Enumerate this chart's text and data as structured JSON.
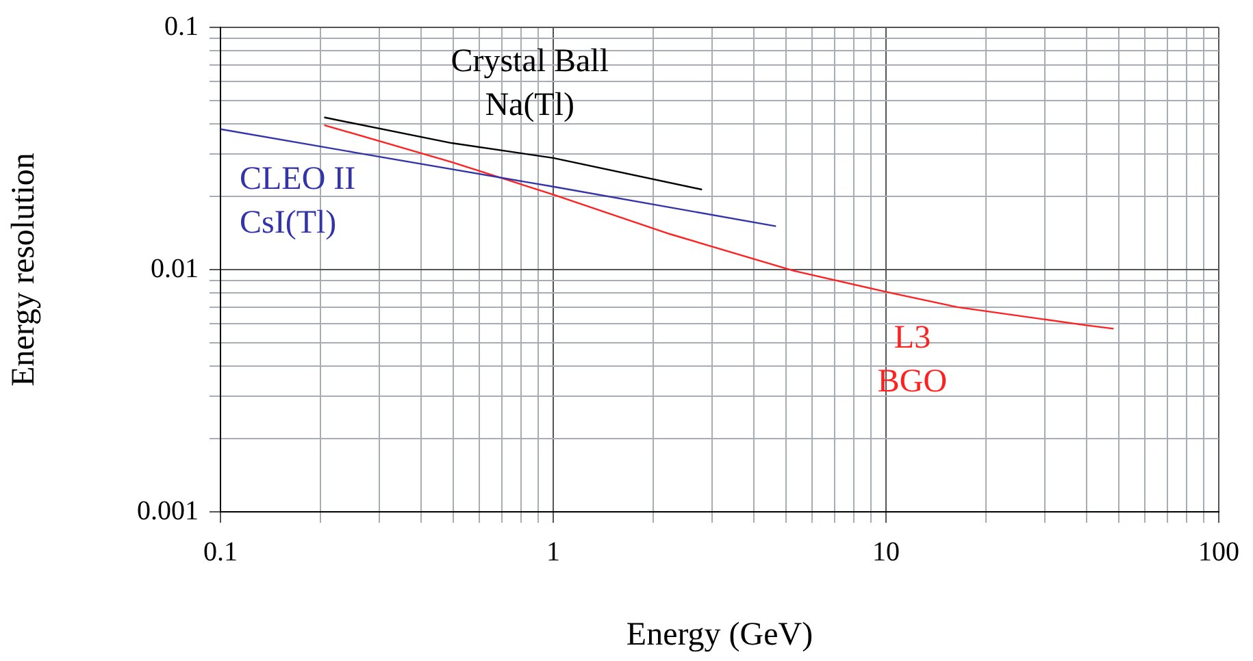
{
  "chart_data": {
    "type": "line",
    "xlabel": "Energy (GeV)",
    "ylabel": "Energy resolution",
    "log": "xy",
    "grid": true,
    "legend": false,
    "marker": "none",
    "line_style": "solid",
    "xlim": [
      0.1,
      100
    ],
    "xticks": [
      0.1,
      1,
      10,
      100
    ],
    "ylim": [
      0.001,
      0.1
    ],
    "yticks": [
      0.001,
      0.01,
      0.1
    ],
    "series": [
      {
        "name": "Crystal Ball\nNa(Tl)",
        "color": "#000000",
        "x": [
          0.205,
          0.495,
          1,
          2.8
        ],
        "values": [
          0.0425,
          0.0333,
          0.0289,
          0.0214
        ]
      },
      {
        "name": "CLEO II\nCsI(Tl)",
        "color": "#3333aa",
        "x": [
          0.1,
          0.255,
          1,
          4.67
        ],
        "values": [
          0.038,
          0.0304,
          0.022,
          0.0151
        ]
      },
      {
        "name": "L3\nBGO",
        "color": "#ff2020",
        "x": [
          0.205,
          0.495,
          1,
          2.25,
          5.27,
          9.97,
          16.4,
          39.6,
          48.3
        ],
        "values": [
          0.0395,
          0.0278,
          0.0204,
          0.014,
          0.0099,
          0.0081,
          0.007,
          0.0059,
          0.0057
        ]
      }
    ]
  }
}
